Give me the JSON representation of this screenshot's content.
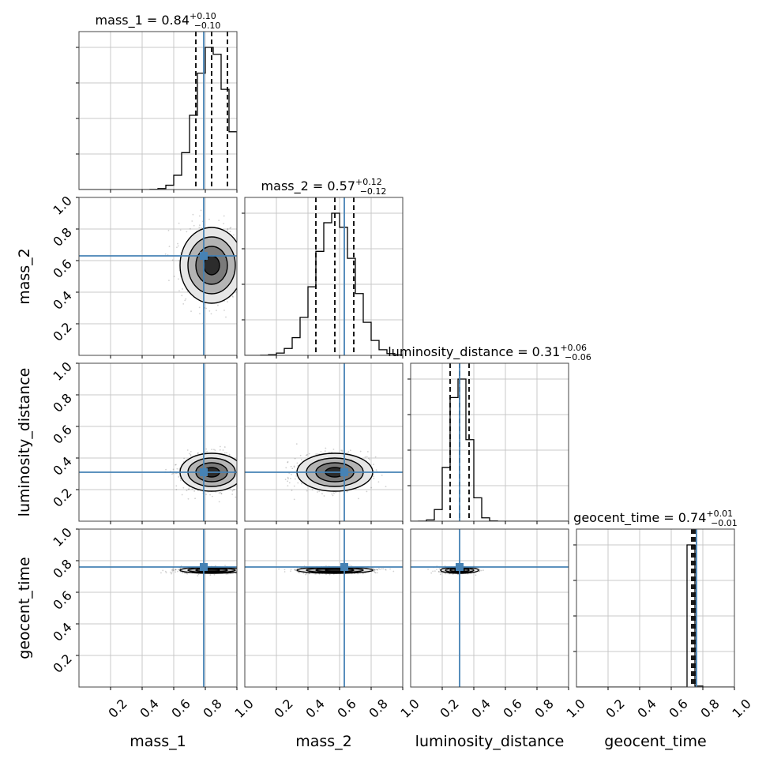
{
  "chart_data": {
    "type": "corner",
    "parameters": [
      "mass_1",
      "mass_2",
      "luminosity_distance",
      "geocent_time"
    ],
    "axis_range": [
      0,
      1
    ],
    "ticks": [
      "0.2",
      "0.4",
      "0.6",
      "0.8",
      "1.0"
    ],
    "tick_values": [
      0.2,
      0.4,
      0.6,
      0.8,
      1.0
    ],
    "grid": true,
    "colors": {
      "truth": "#4682b4",
      "hist": "#000000",
      "grid": "#c8c8c8",
      "samples": "#000000"
    },
    "truths": [
      0.79,
      0.63,
      0.31,
      0.76
    ],
    "titles": [
      {
        "main": "mass_1 = 0.84",
        "upper": "+0.10",
        "lower": "−0.10"
      },
      {
        "main": "mass_2 = 0.57",
        "upper": "+0.12",
        "lower": "−0.12"
      },
      {
        "main": "luminosity_distance = 0.31",
        "upper": "+0.06",
        "lower": "−0.06"
      },
      {
        "main": "geocent_time = 0.74",
        "upper": "+0.01",
        "lower": "−0.01"
      }
    ],
    "summary": [
      {
        "median": 0.84,
        "lower": 0.74,
        "upper": 0.94
      },
      {
        "median": 0.57,
        "lower": 0.45,
        "upper": 0.69
      },
      {
        "median": 0.31,
        "lower": 0.25,
        "upper": 0.37
      },
      {
        "median": 0.74,
        "lower": 0.73,
        "upper": 0.75
      }
    ],
    "sigma": [
      0.1,
      0.12,
      0.06,
      0.01
    ]
  }
}
